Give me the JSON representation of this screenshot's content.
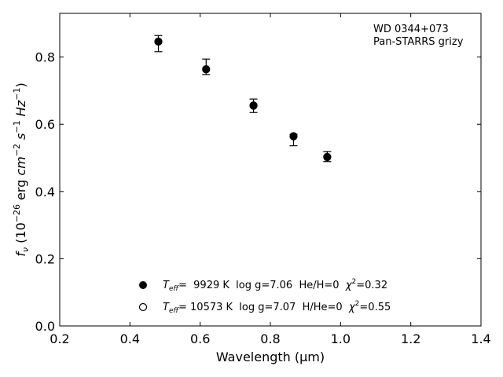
{
  "chart_data": {
    "type": "scatter",
    "title": "",
    "xlabel": "Wavelength (μm)",
    "ylabel_parts": {
      "f": "f",
      "nu": "ν",
      "open": " (10",
      "exp": "−26",
      "erg": " erg ",
      "cm": "cm",
      "cm_exp": "−2",
      "s": " s",
      "s_exp": "−1",
      "hz": " Hz",
      "hz_exp": "−1",
      "close": ")"
    },
    "xlim": [
      0.2,
      1.4
    ],
    "ylim": [
      0.0,
      0.93
    ],
    "xticks": [
      0.2,
      0.4,
      0.6,
      0.8,
      1.0,
      1.2,
      1.4
    ],
    "xtick_labels": [
      "0.2",
      "0.4",
      "0.6",
      "0.8",
      "1.0",
      "1.2",
      "1.4"
    ],
    "yticks": [
      0.0,
      0.2,
      0.4,
      0.6,
      0.8
    ],
    "ytick_labels": [
      "0.0",
      "0.2",
      "0.4",
      "0.6",
      "0.8"
    ],
    "grid": false,
    "annotation": [
      "WD 0344+073",
      "Pan-STARRS grizy"
    ],
    "observed": {
      "x": [
        0.481,
        0.617,
        0.752,
        0.866,
        0.962
      ],
      "y": [
        0.84,
        0.771,
        0.655,
        0.553,
        0.504
      ],
      "yerr": [
        0.024,
        0.023,
        0.02,
        0.017,
        0.015
      ]
    },
    "model_filled": {
      "x": [
        0.481,
        0.617,
        0.752,
        0.866,
        0.962
      ],
      "y": [
        0.846,
        0.763,
        0.655,
        0.565,
        0.502
      ]
    },
    "model_open": {
      "x": [
        0.481,
        0.617,
        0.752,
        0.866,
        0.962
      ],
      "y": [
        0.846,
        0.764,
        0.656,
        0.564,
        0.503
      ]
    },
    "legend": [
      {
        "marker": "filled",
        "teff_symbol": "T",
        "teff_sub": "eff",
        "value_text": "=  9929 K  log g=7.06  He/H=0  ",
        "chi": "χ",
        "chi_exp": "2",
        "chi_value": "=0.32"
      },
      {
        "marker": "open",
        "teff_symbol": "T",
        "teff_sub": "eff",
        "value_text": "= 10573 K  log g=7.07  H/He=0  ",
        "chi": "χ",
        "chi_exp": "2",
        "chi_value": "=0.55"
      }
    ]
  }
}
